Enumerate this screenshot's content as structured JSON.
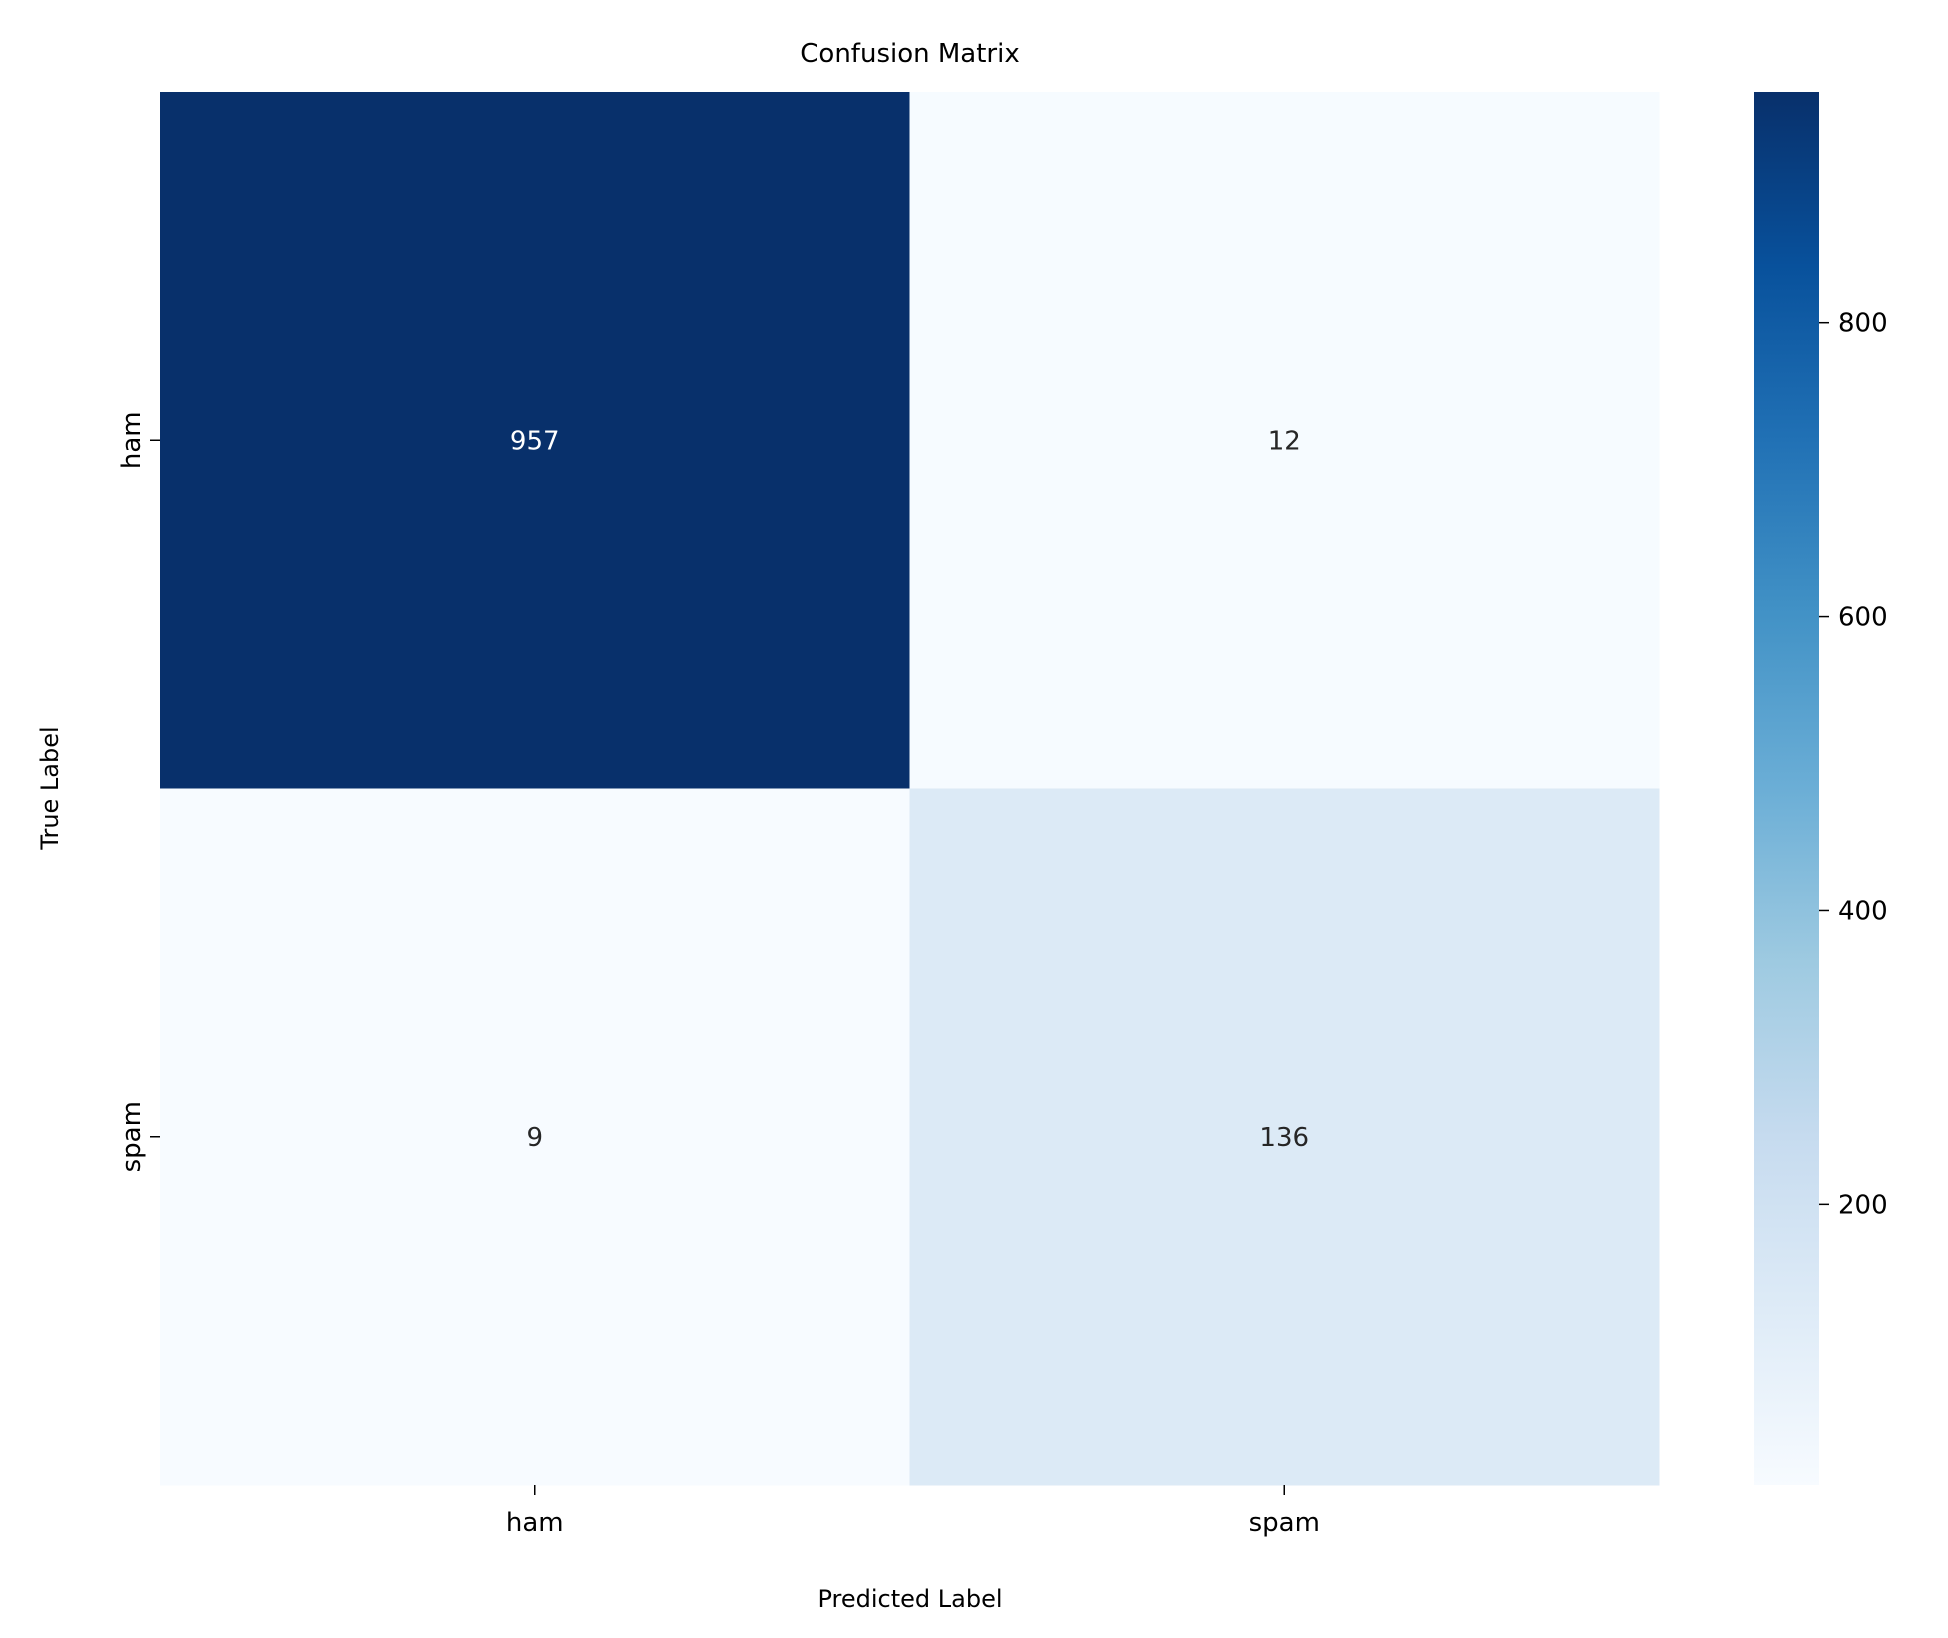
{
  "chart_data": {
    "type": "heatmap",
    "title": "Confusion Matrix",
    "xlabel": "Predicted Label",
    "ylabel": "True Label",
    "x_categories": [
      "ham",
      "spam"
    ],
    "y_categories": [
      "ham",
      "spam"
    ],
    "values": [
      [
        957,
        12
      ],
      [
        9,
        136
      ]
    ],
    "colormap": "Blues",
    "colorbar": {
      "vmin": 9,
      "vmax": 957,
      "ticks": [
        200,
        400,
        600,
        800
      ]
    },
    "colors": [
      "#f7fbff",
      "#deebf7",
      "#c6dbef",
      "#9ecae1",
      "#6baed6",
      "#4292c6",
      "#2171b5",
      "#08519c",
      "#08306b"
    ]
  }
}
